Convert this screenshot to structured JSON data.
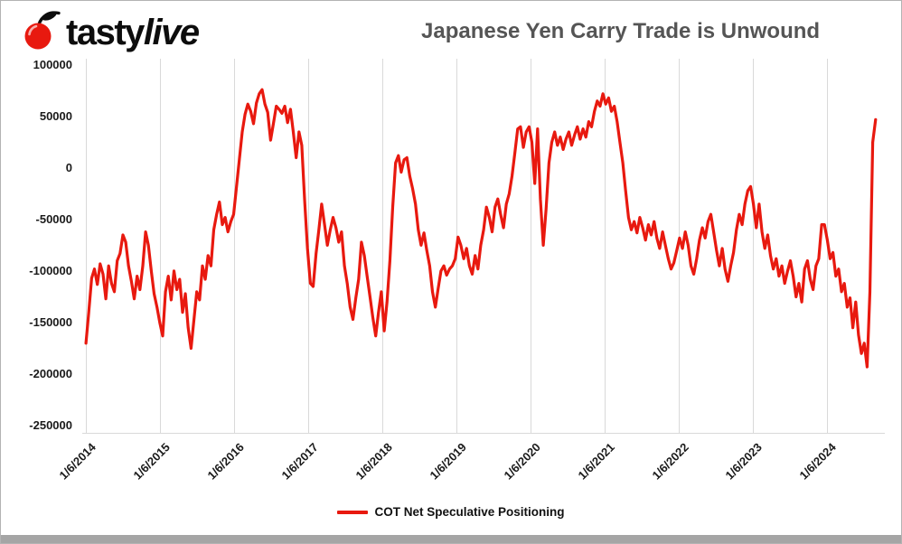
{
  "header": {
    "logo": {
      "brand_first": "tasty",
      "brand_second": "live"
    },
    "title": "Japanese Yen Carry Trade is Unwound"
  },
  "legend": {
    "label": "COT Net Speculative Positioning"
  },
  "colors": {
    "line": "#e8190f",
    "grid": "#d9d9d9",
    "title_text": "#555555",
    "axis_text": "#1a1a1a",
    "bottom_bar": "#a5a5a5",
    "cherry_red": "#e8190f",
    "logo_black": "#0d0d0d"
  },
  "chart_data": {
    "type": "line",
    "title": "Japanese Yen Carry Trade is Unwound",
    "series_name": "COT Net Speculative Positioning",
    "grid": "vertical-only",
    "legend_position": "bottom-center",
    "y_ticks": [
      100000,
      50000,
      0,
      -50000,
      -100000,
      -150000,
      -200000,
      -250000
    ],
    "y_range": [
      -257000,
      106000
    ],
    "x_ticks": [
      "1/6/2014",
      "1/6/2015",
      "1/6/2016",
      "1/6/2017",
      "1/6/2018",
      "1/6/2019",
      "1/6/2020",
      "1/6/2021",
      "1/6/2022",
      "1/6/2023",
      "1/6/2024"
    ],
    "x_tick_years": [
      2014,
      2015,
      2016,
      2017,
      2018,
      2019,
      2020,
      2021,
      2022,
      2023,
      2024
    ],
    "x_range_years": [
      2013.95,
      2024.78
    ],
    "series_start_year": 2014.0,
    "sample_interval_weeks": 2,
    "values": [
      -170000,
      -140000,
      -107000,
      -98000,
      -113000,
      -93000,
      -103000,
      -127000,
      -95000,
      -112000,
      -120000,
      -90000,
      -83000,
      -65000,
      -72000,
      -95000,
      -110000,
      -127000,
      -105000,
      -118000,
      -95000,
      -62000,
      -75000,
      -100000,
      -122000,
      -135000,
      -150000,
      -163000,
      -120000,
      -105000,
      -128000,
      -100000,
      -118000,
      -108000,
      -140000,
      -122000,
      -155000,
      -175000,
      -148000,
      -120000,
      -128000,
      -95000,
      -108000,
      -85000,
      -95000,
      -60000,
      -45000,
      -33000,
      -55000,
      -48000,
      -62000,
      -52000,
      -45000,
      -18000,
      8000,
      35000,
      52000,
      62000,
      55000,
      43000,
      63000,
      72000,
      76000,
      62000,
      54000,
      27000,
      43000,
      60000,
      57000,
      53000,
      60000,
      44000,
      57000,
      35000,
      10000,
      35000,
      22000,
      -32000,
      -78000,
      -112000,
      -115000,
      -83000,
      -60000,
      -35000,
      -55000,
      -75000,
      -60000,
      -48000,
      -58000,
      -72000,
      -62000,
      -95000,
      -112000,
      -135000,
      -147000,
      -126000,
      -108000,
      -72000,
      -85000,
      -105000,
      -125000,
      -145000,
      -163000,
      -140000,
      -120000,
      -158000,
      -130000,
      -90000,
      -38000,
      5000,
      12000,
      -4000,
      8000,
      10000,
      -8000,
      -20000,
      -35000,
      -60000,
      -75000,
      -63000,
      -80000,
      -95000,
      -120000,
      -135000,
      -117000,
      -100000,
      -95000,
      -104000,
      -98000,
      -95000,
      -88000,
      -67000,
      -75000,
      -88000,
      -78000,
      -95000,
      -103000,
      -85000,
      -98000,
      -75000,
      -60000,
      -38000,
      -48000,
      -62000,
      -38000,
      -30000,
      -45000,
      -58000,
      -35000,
      -25000,
      -8000,
      15000,
      38000,
      40000,
      20000,
      35000,
      40000,
      25000,
      -15000,
      38000,
      -30000,
      -75000,
      -40000,
      5000,
      25000,
      35000,
      22000,
      30000,
      18000,
      28000,
      35000,
      22000,
      32000,
      40000,
      28000,
      38000,
      30000,
      45000,
      40000,
      55000,
      65000,
      60000,
      72000,
      62000,
      68000,
      55000,
      60000,
      45000,
      25000,
      5000,
      -22000,
      -48000,
      -60000,
      -52000,
      -63000,
      -48000,
      -58000,
      -70000,
      -55000,
      -65000,
      -52000,
      -68000,
      -78000,
      -62000,
      -75000,
      -88000,
      -98000,
      -92000,
      -80000,
      -68000,
      -78000,
      -62000,
      -75000,
      -95000,
      -103000,
      -88000,
      -70000,
      -58000,
      -68000,
      -52000,
      -45000,
      -62000,
      -80000,
      -95000,
      -78000,
      -98000,
      -110000,
      -95000,
      -82000,
      -60000,
      -45000,
      -55000,
      -35000,
      -22000,
      -18000,
      -35000,
      -58000,
      -35000,
      -62000,
      -78000,
      -65000,
      -85000,
      -98000,
      -88000,
      -105000,
      -95000,
      -112000,
      -100000,
      -90000,
      -105000,
      -125000,
      -112000,
      -130000,
      -98000,
      -90000,
      -108000,
      -118000,
      -95000,
      -88000,
      -55000,
      -55000,
      -70000,
      -88000,
      -82000,
      -105000,
      -98000,
      -120000,
      -112000,
      -135000,
      -126000,
      -155000,
      -130000,
      -162000,
      -180000,
      -170000,
      -193000,
      -120000,
      25000,
      47000
    ]
  }
}
